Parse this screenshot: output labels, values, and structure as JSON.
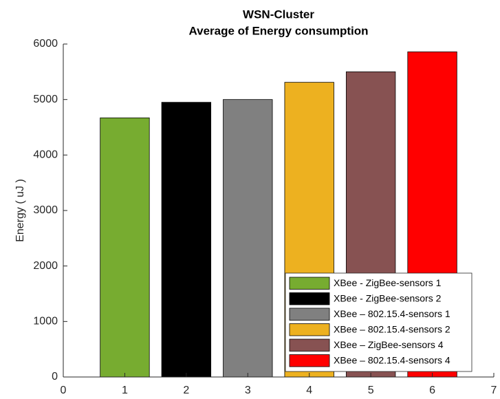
{
  "chart_data": {
    "type": "bar",
    "title": [
      "WSN-Cluster",
      "Average of Energy consumption"
    ],
    "ylabel": "Energy ( uJ )",
    "series": [
      {
        "name": "XBee - ZigBee-sensors 1",
        "color": "#77ac30",
        "x": [
          1
        ],
        "values": [
          4670
        ]
      },
      {
        "name": "XBee - ZigBee-sensors 2",
        "color": "#000000",
        "x": [
          2
        ],
        "values": [
          4950
        ]
      },
      {
        "name": "XBee – 802.15.4-sensors 1",
        "color": "#808080",
        "x": [
          3
        ],
        "values": [
          5000
        ]
      },
      {
        "name": "XBee – 802.15.4-sensors 2",
        "color": "#edb120",
        "x": [
          4
        ],
        "values": [
          5310
        ]
      },
      {
        "name": "XBee – ZigBee-sensors 4",
        "color": "#875252",
        "x": [
          5
        ],
        "values": [
          5500
        ]
      },
      {
        "name": "XBee – 802.15.4-sensors 4",
        "color": "#ff0000",
        "x": [
          6
        ],
        "values": [
          5860
        ]
      }
    ],
    "xlim": [
      0,
      7
    ],
    "xticks": [
      0,
      1,
      2,
      3,
      4,
      5,
      6,
      7
    ],
    "ylim": [
      0,
      6000
    ],
    "yticks": [
      0,
      1000,
      2000,
      3000,
      4000,
      5000,
      6000
    ],
    "bar_width": 0.8,
    "legend": "lower right"
  }
}
